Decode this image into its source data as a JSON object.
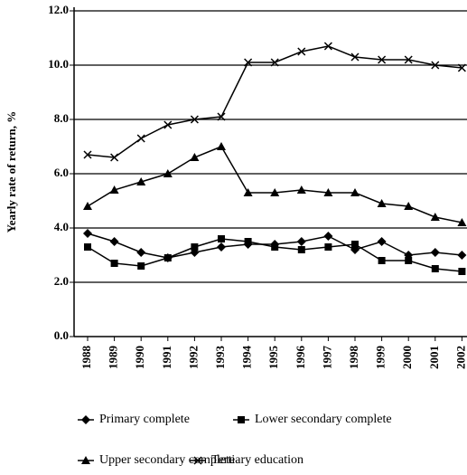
{
  "chart_data": {
    "type": "line",
    "y_label": "Yearly rate of return, %",
    "categories": [
      "1988",
      "1989",
      "1990",
      "1991",
      "1992",
      "1993",
      "1994",
      "1995",
      "1996",
      "1997",
      "1998",
      "1999",
      "2000",
      "2001",
      "2002"
    ],
    "ylim": [
      0,
      12
    ],
    "yticks": [
      {
        "value": 0,
        "label": "0.0"
      },
      {
        "value": 2,
        "label": "2.0"
      },
      {
        "value": 4,
        "label": "4.0"
      },
      {
        "value": 6,
        "label": "6.0"
      },
      {
        "value": 8,
        "label": "8.0"
      },
      {
        "value": 10,
        "label": "10.0"
      },
      {
        "value": 12,
        "label": "12.0"
      }
    ],
    "grid": true,
    "series": [
      {
        "name": "Primary complete",
        "color": "#000000",
        "marker": "diamond",
        "values": [
          3.8,
          3.5,
          3.1,
          2.9,
          3.1,
          3.3,
          3.4,
          3.4,
          3.5,
          3.7,
          3.2,
          3.5,
          3.0,
          3.1,
          3.0
        ]
      },
      {
        "name": "Lower secondary complete",
        "color": "#000000",
        "marker": "square",
        "values": [
          3.3,
          2.7,
          2.6,
          2.9,
          3.3,
          3.6,
          3.5,
          3.3,
          3.2,
          3.3,
          3.4,
          2.8,
          2.8,
          2.5,
          2.4
        ]
      },
      {
        "name": "Upper secondary complete",
        "color": "#000000",
        "marker": "triangle",
        "values": [
          4.8,
          5.4,
          5.7,
          6.0,
          6.6,
          7.0,
          5.3,
          5.3,
          5.4,
          5.3,
          5.3,
          4.9,
          4.8,
          4.4,
          4.2
        ]
      },
      {
        "name": "Tertiary education",
        "color": "#000000",
        "marker": "x",
        "values": [
          6.7,
          6.6,
          7.3,
          7.8,
          8.0,
          8.1,
          10.1,
          10.1,
          10.5,
          10.7,
          10.3,
          10.2,
          10.2,
          10.0,
          9.9
        ]
      }
    ]
  }
}
